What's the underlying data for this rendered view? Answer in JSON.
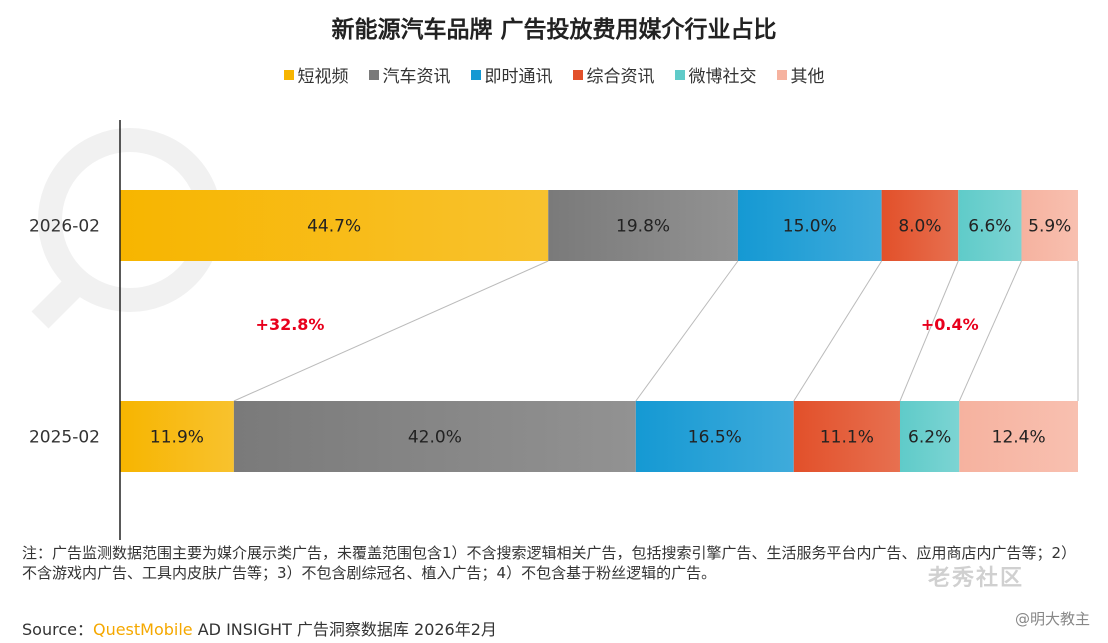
{
  "title": "新能源汽车品牌 广告投放费用媒介行业占比",
  "colors": {
    "短视频": "#f7b500",
    "汽车资讯": "#7a7a7a",
    "即时通讯": "#1599d3",
    "综合资讯": "#e2502a",
    "微博社交": "#5fcbc9",
    "其他": "#f6b29f",
    "change_label": "#e8001c"
  },
  "chart_data": {
    "type": "bar",
    "orientation": "horizontal",
    "stacked": true,
    "normalized": true,
    "categories": [
      "2026-02",
      "2025-02"
    ],
    "series": [
      {
        "name": "短视频",
        "values": [
          44.7,
          11.9
        ],
        "labels": [
          "44.7%",
          "11.9%"
        ]
      },
      {
        "name": "汽车资讯",
        "values": [
          19.8,
          42.0
        ],
        "labels": [
          "19.8%",
          "42.0%"
        ]
      },
      {
        "name": "即时通讯",
        "values": [
          15.0,
          16.5
        ],
        "labels": [
          "15.0%",
          "16.5%"
        ]
      },
      {
        "name": "综合资讯",
        "values": [
          8.0,
          11.1
        ],
        "labels": [
          "8.0%",
          "11.1%"
        ]
      },
      {
        "name": "微博社交",
        "values": [
          6.6,
          6.2
        ],
        "labels": [
          "6.6%",
          "6.2%"
        ]
      },
      {
        "name": "其他",
        "values": [
          5.9,
          12.4
        ],
        "labels": [
          "5.9%",
          "12.4%"
        ]
      }
    ],
    "annotations": [
      {
        "text": "+32.8%",
        "series": "短视频"
      },
      {
        "text": "+0.4%",
        "series": "微博社交"
      }
    ],
    "legend_position": "top",
    "grid": false
  },
  "notes": "注：广告监测数据范围主要为媒介展示类广告，未覆盖范围包含1）不含搜索逻辑相关广告，包括搜索引擎广告、生活服务平台内广告、应用商店内广告等；2）不含游戏内广告、工具内皮肤广告等；3）不包含剧综冠名、植入广告；4）不包含基于粉丝逻辑的广告。",
  "source": {
    "prefix": "Source：",
    "brand": "QuestMobile",
    "rest": " AD INSIGHT 广告洞察数据库 2026年2月"
  },
  "social_handle": "@明大教主",
  "stamp_text": "老秀社区"
}
